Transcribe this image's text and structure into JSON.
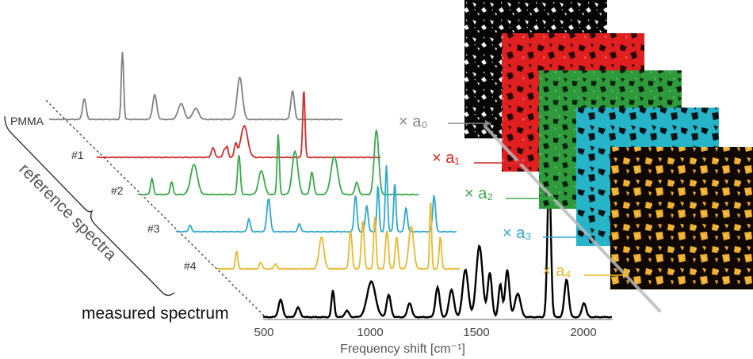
{
  "labels": {
    "pmma": "PMMA",
    "ref1": "#1",
    "ref2": "#2",
    "ref3": "#3",
    "ref4": "#4",
    "measured": "measured spectrum",
    "reference": "reference spectra"
  },
  "axis": {
    "title": "Frequency shift [cm⁻¹]",
    "ticks": [
      "500",
      "1000",
      "1500",
      "2000"
    ]
  },
  "coefficients": [
    {
      "text": "× a₀",
      "color": "#888888"
    },
    {
      "text": "× a₁",
      "color": "#d42a2a"
    },
    {
      "text": "× a₂",
      "color": "#3aa84a"
    },
    {
      "text": "× a₃",
      "color": "#2fa8d0"
    },
    {
      "text": "× a₄",
      "color": "#e8b830"
    }
  ],
  "colors": {
    "pmma": "#808080",
    "ref1": "#d42a2a",
    "ref2": "#3aa84a",
    "ref3": "#2fa8d0",
    "ref4": "#e8b830",
    "measured": "#000000",
    "map0": "#000000",
    "map1": "#e02020",
    "map2": "#2e9a3c",
    "map3": "#26b4c8",
    "map4": "#f0b030"
  }
}
